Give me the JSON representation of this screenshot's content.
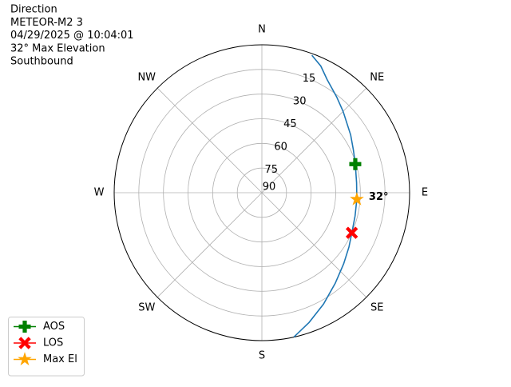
{
  "chart_data": {
    "type": "polar",
    "title_lines": [
      "Direction",
      "METEOR-M2 3",
      "04/29/2025 @ 10:04:01",
      "32° Max Elevation",
      "Southbound"
    ],
    "thetaticks": [
      {
        "value": 0,
        "label": "N"
      },
      {
        "value": 45,
        "label": "NE"
      },
      {
        "value": 90,
        "label": "E"
      },
      {
        "value": 135,
        "label": "SE"
      },
      {
        "value": 180,
        "label": "S"
      },
      {
        "value": 225,
        "label": "SW"
      },
      {
        "value": 270,
        "label": "W"
      },
      {
        "value": 315,
        "label": "NW"
      }
    ],
    "rlim": [
      90,
      0
    ],
    "rticks": [
      15,
      30,
      45,
      60,
      75,
      90
    ],
    "rlabel_angle": 22.5,
    "grid": true,
    "track": {
      "color": "#1f77b4",
      "azimuth": [
        20,
        25,
        30,
        38,
        45,
        57,
        65,
        73,
        84,
        94,
        104,
        114,
        122,
        131,
        141,
        151,
        160,
        167.5
      ],
      "elevation": [
        1,
        5,
        10.5,
        16,
        20,
        25.5,
        28.5,
        30.5,
        32,
        32,
        31.5,
        30,
        27.5,
        24,
        19,
        12.5,
        6,
        0
      ]
    },
    "series": [
      {
        "name": "AOS",
        "color": "green",
        "marker": "plus",
        "azimuth": [
          73
        ],
        "elevation": [
          30.5
        ]
      },
      {
        "name": "LOS",
        "color": "red",
        "marker": "x",
        "azimuth": [
          114
        ],
        "elevation": [
          30
        ]
      },
      {
        "name": "Max El",
        "color": "orange",
        "marker": "star",
        "azimuth": [
          94
        ],
        "elevation": [
          32
        ],
        "value_labels": [
          "32°"
        ]
      }
    ],
    "legend": "lower left"
  }
}
